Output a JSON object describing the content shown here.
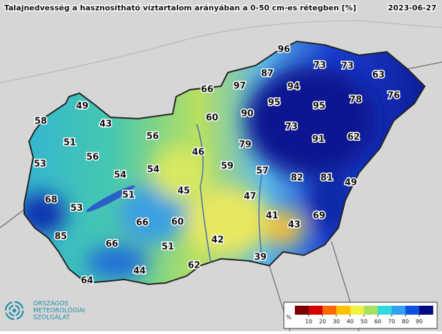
{
  "header": {
    "title": "Talajnedvesség a hasznosítható víztartalom arányában a 0-50 cm-es rétegben [%]",
    "date": "2023-06-27"
  },
  "stations": [
    96,
    73,
    73,
    63,
    87,
    97,
    94,
    66,
    78,
    76,
    95,
    95,
    49,
    90,
    60,
    58,
    43,
    73,
    91,
    62,
    51,
    56,
    79,
    46,
    56,
    53,
    59,
    57,
    54,
    54,
    82,
    81,
    49,
    51,
    45,
    47,
    68,
    53,
    41,
    69,
    66,
    60,
    43,
    85,
    42,
    66,
    51,
    39,
    62,
    44,
    64
  ],
  "legend": {
    "unit": "%",
    "ticks": [
      10,
      20,
      30,
      40,
      50,
      60,
      70,
      80,
      90
    ],
    "colors": [
      "#7a0000",
      "#d40000",
      "#ff6a00",
      "#ffc000",
      "#f0f040",
      "#a8e060",
      "#30d8e0",
      "#30a0f0",
      "#1050e0",
      "#000a80"
    ]
  },
  "logo": {
    "lines": [
      "ORSZÁGOS",
      "METEOROLÓGIAI",
      "SZOLGÁLAT"
    ]
  }
}
